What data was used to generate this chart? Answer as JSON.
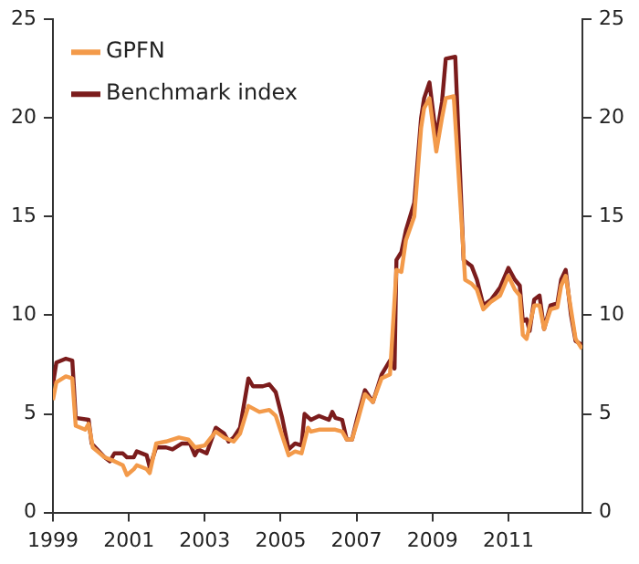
{
  "chart_data": {
    "type": "line",
    "xlim": [
      1999,
      2012.95
    ],
    "xticks": [
      1999,
      2001,
      2003,
      2005,
      2007,
      2009,
      2011
    ],
    "ylim": [
      0,
      25
    ],
    "yticks": [
      0,
      5,
      10,
      15,
      20,
      25
    ],
    "y2lim": [
      0,
      25
    ],
    "y2ticks": [
      0,
      5,
      10,
      15,
      20,
      25
    ],
    "grid": false,
    "legend": "top left",
    "marker": "none",
    "line_style": "solid",
    "series": [
      {
        "name": "GPFN",
        "color": "#f39a4a",
        "x": [
          1999.0,
          1999.09,
          1999.34,
          1999.51,
          1999.6,
          1999.85,
          1999.94,
          2000.05,
          2000.36,
          2000.62,
          2000.84,
          2000.95,
          2001.13,
          2001.21,
          2001.47,
          2001.55,
          2001.72,
          2001.98,
          2002.32,
          2002.57,
          2002.74,
          2003.0,
          2003.29,
          2003.51,
          2003.76,
          2003.93,
          2004.15,
          2004.44,
          2004.7,
          2004.87,
          2005.04,
          2005.21,
          2005.38,
          2005.55,
          2005.72,
          2005.8,
          2006.01,
          2006.44,
          2006.62,
          2006.74,
          2006.88,
          2007.02,
          2007.22,
          2007.43,
          2007.66,
          2007.88,
          2008.05,
          2008.18,
          2008.3,
          2008.52,
          2008.7,
          2008.78,
          2008.92,
          2009.1,
          2009.25,
          2009.35,
          2009.56,
          2009.86,
          2010.03,
          2010.17,
          2010.34,
          2010.55,
          2010.78,
          2011.0,
          2011.17,
          2011.3,
          2011.38,
          2011.48,
          2011.68,
          2011.82,
          2011.94,
          2012.11,
          2012.29,
          2012.39,
          2012.51,
          2012.77,
          2012.94
        ],
        "values": [
          5.7,
          6.6,
          6.9,
          6.8,
          4.4,
          4.2,
          4.5,
          3.3,
          2.8,
          2.6,
          2.4,
          1.9,
          2.2,
          2.4,
          2.2,
          2.0,
          3.5,
          3.6,
          3.8,
          3.7,
          3.3,
          3.4,
          4.1,
          3.8,
          3.6,
          4.0,
          5.4,
          5.1,
          5.2,
          4.9,
          3.9,
          2.9,
          3.1,
          3.0,
          4.3,
          4.1,
          4.2,
          4.2,
          4.1,
          3.7,
          3.7,
          4.6,
          6.0,
          5.6,
          6.8,
          7.0,
          12.3,
          12.2,
          13.8,
          15.0,
          19.5,
          20.5,
          21.0,
          18.3,
          20.0,
          21.0,
          21.1,
          11.8,
          11.6,
          11.3,
          10.3,
          10.7,
          11.0,
          12.0,
          11.3,
          11.0,
          9.0,
          8.8,
          10.5,
          10.5,
          9.3,
          10.3,
          10.4,
          11.5,
          12.0,
          8.8,
          8.3
        ]
      },
      {
        "name": "Benchmark index",
        "color": "#7b1c1c",
        "x": [
          1999.0,
          1999.09,
          1999.34,
          1999.51,
          1999.6,
          1999.94,
          2000.02,
          2000.36,
          2000.5,
          2000.62,
          2000.84,
          2000.95,
          2001.13,
          2001.21,
          2001.47,
          2001.55,
          2001.72,
          2001.98,
          2002.15,
          2002.4,
          2002.61,
          2002.74,
          2002.83,
          2003.05,
          2003.29,
          2003.51,
          2003.63,
          2003.76,
          2003.93,
          2004.15,
          2004.27,
          2004.53,
          2004.7,
          2004.87,
          2005.04,
          2005.21,
          2005.38,
          2005.55,
          2005.63,
          2005.8,
          2006.01,
          2006.27,
          2006.36,
          2006.44,
          2006.62,
          2006.74,
          2006.88,
          2007.02,
          2007.22,
          2007.43,
          2007.66,
          2007.88,
          2008.0,
          2008.05,
          2008.18,
          2008.3,
          2008.52,
          2008.7,
          2008.78,
          2008.92,
          2009.1,
          2009.25,
          2009.35,
          2009.6,
          2009.82,
          2010.03,
          2010.17,
          2010.34,
          2010.55,
          2010.78,
          2011.0,
          2011.17,
          2011.3,
          2011.38,
          2011.48,
          2011.56,
          2011.68,
          2011.82,
          2011.94,
          2012.11,
          2012.29,
          2012.39,
          2012.51,
          2012.65,
          2012.77,
          2012.94
        ],
        "values": [
          6.5,
          7.6,
          7.8,
          7.7,
          4.8,
          4.7,
          3.5,
          2.8,
          2.6,
          3.0,
          3.0,
          2.8,
          2.8,
          3.1,
          2.9,
          2.3,
          3.3,
          3.3,
          3.2,
          3.5,
          3.5,
          2.9,
          3.2,
          3.0,
          4.3,
          4.0,
          3.6,
          3.8,
          4.3,
          6.8,
          6.4,
          6.4,
          6.5,
          6.1,
          4.8,
          3.2,
          3.5,
          3.4,
          5.0,
          4.7,
          4.9,
          4.7,
          5.1,
          4.8,
          4.7,
          3.7,
          3.7,
          4.8,
          6.2,
          5.6,
          7.0,
          7.7,
          7.3,
          12.8,
          13.2,
          14.3,
          15.7,
          20.0,
          21.0,
          21.8,
          19.0,
          20.8,
          23.0,
          23.1,
          12.8,
          12.5,
          11.8,
          10.5,
          10.8,
          11.4,
          12.4,
          11.8,
          11.5,
          9.7,
          9.8,
          9.2,
          10.8,
          11.0,
          9.3,
          10.5,
          10.6,
          11.8,
          12.3,
          10.0,
          8.7,
          8.5
        ]
      }
    ]
  }
}
